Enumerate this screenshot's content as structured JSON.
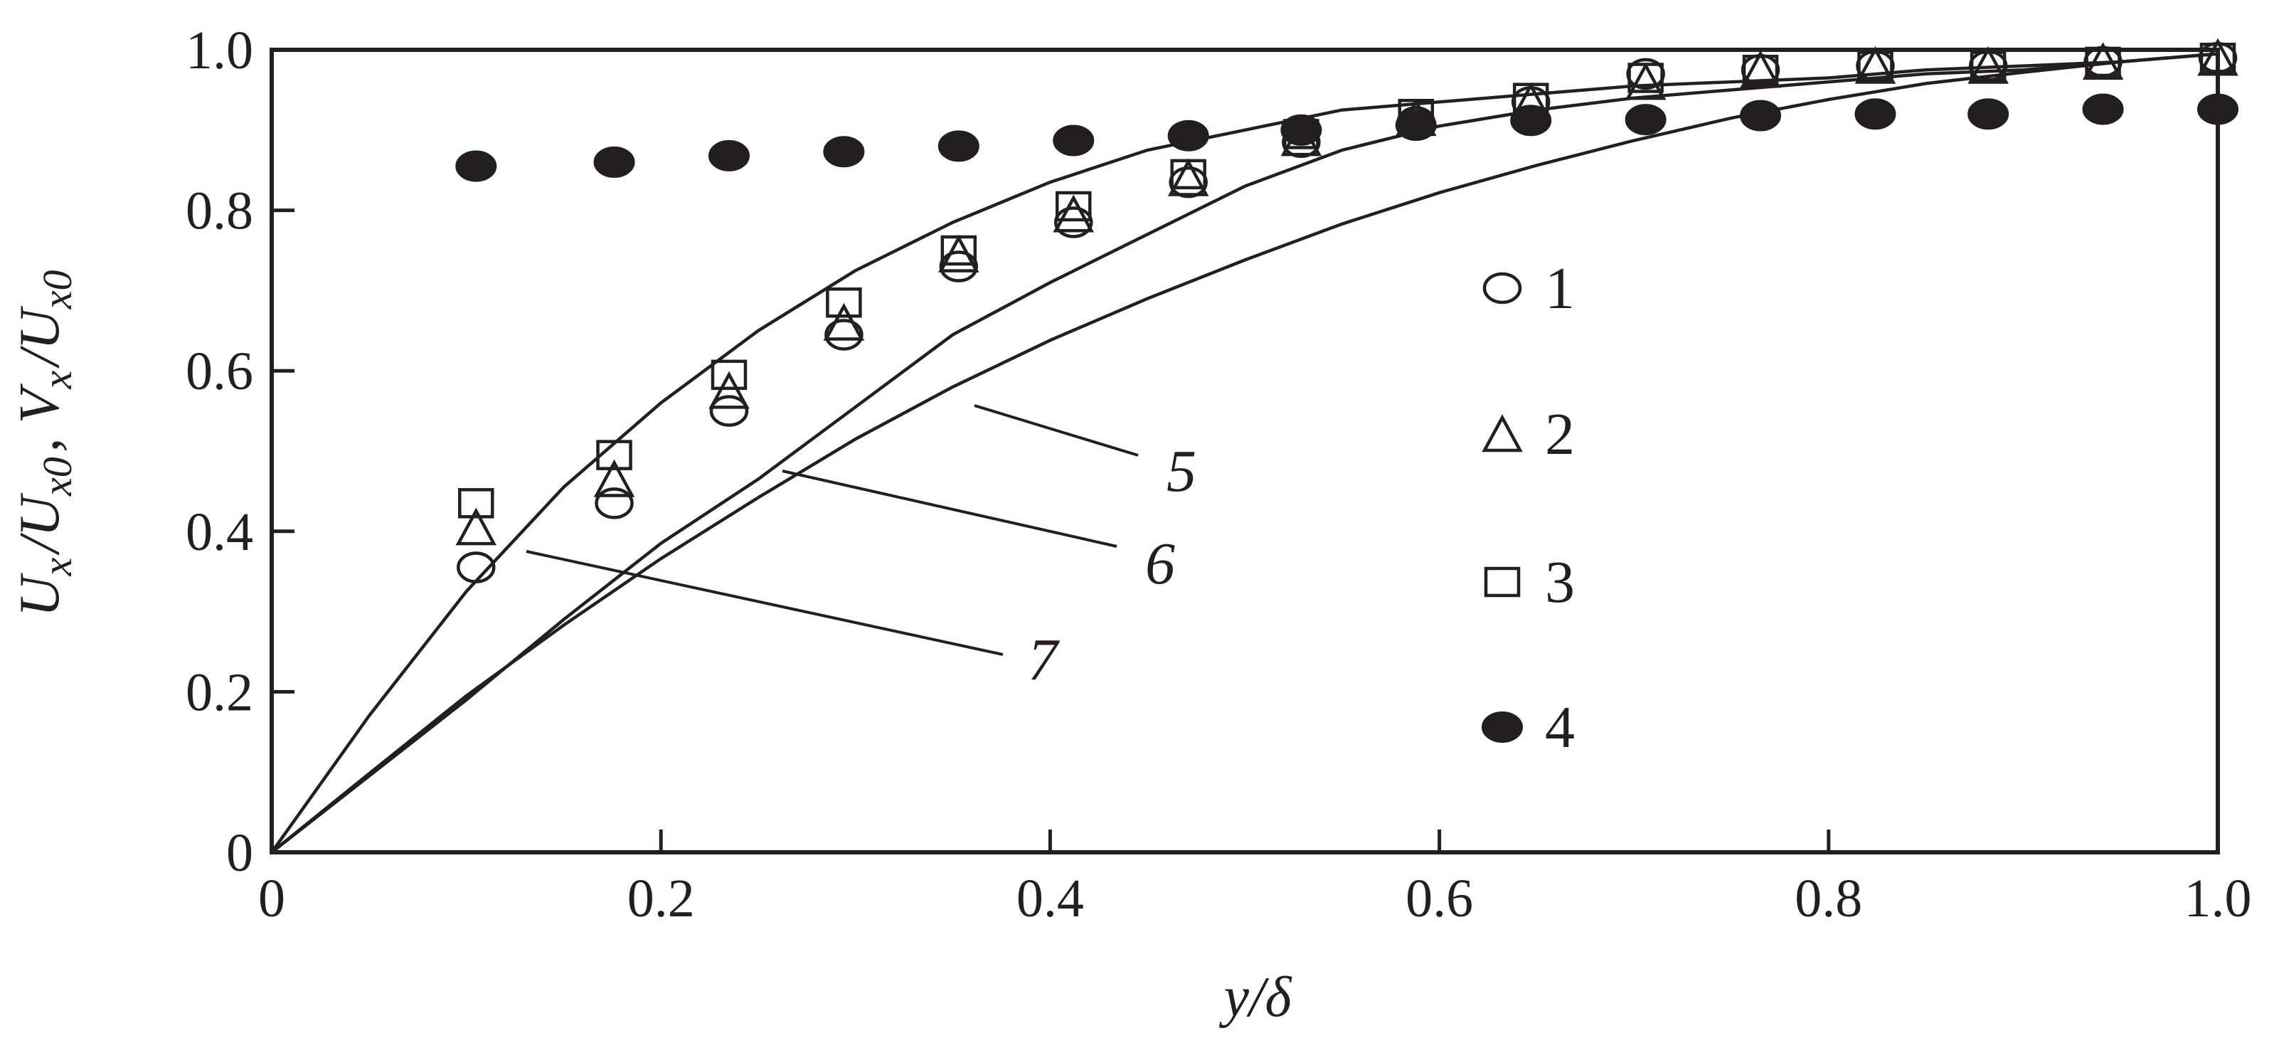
{
  "chart_data": {
    "type": "scatter",
    "title": "",
    "xlabel": "y/δ",
    "ylabel": "U_x/U_x0, V_x/U_x0",
    "ylabel_parts": [
      {
        "text": "U",
        "sub": "x"
      },
      {
        "text": "/"
      },
      {
        "text": "U",
        "sub": "x0"
      },
      {
        "text": ", "
      },
      {
        "text": "V",
        "sub": "x"
      },
      {
        "text": "/"
      },
      {
        "text": "U",
        "sub": "x0"
      }
    ],
    "xlim": [
      0,
      1.0
    ],
    "ylim": [
      0,
      1.0
    ],
    "x_ticks": [
      {
        "value": 0,
        "label": "0"
      },
      {
        "value": 0.2,
        "label": "0.2"
      },
      {
        "value": 0.4,
        "label": "0.4"
      },
      {
        "value": 0.6,
        "label": "0.6"
      },
      {
        "value": 0.8,
        "label": "0.8"
      },
      {
        "value": 1.0,
        "label": "1.0"
      }
    ],
    "y_ticks": [
      {
        "value": 0,
        "label": "0"
      },
      {
        "value": 0.2,
        "label": "0.2"
      },
      {
        "value": 0.4,
        "label": "0.4"
      },
      {
        "value": 0.6,
        "label": "0.6"
      },
      {
        "value": 0.8,
        "label": "0.8"
      },
      {
        "value": 1.0,
        "label": "1.0"
      }
    ],
    "grid": false,
    "legend_position": "right",
    "series": [
      {
        "name": "1",
        "marker": "circle-open",
        "x": [
          0.105,
          0.176,
          0.235,
          0.294,
          0.353,
          0.412,
          0.471,
          0.529,
          0.588,
          0.647,
          0.706,
          0.765,
          0.824,
          0.882,
          0.941,
          1.0
        ],
        "y": [
          0.355,
          0.435,
          0.55,
          0.645,
          0.73,
          0.785,
          0.835,
          0.885,
          0.91,
          0.935,
          0.97,
          0.975,
          0.98,
          0.98,
          0.985,
          0.99
        ]
      },
      {
        "name": "2",
        "marker": "triangle-open",
        "x": [
          0.105,
          0.176,
          0.235,
          0.294,
          0.353,
          0.412,
          0.471,
          0.529,
          0.588,
          0.647,
          0.706,
          0.765,
          0.824,
          0.882,
          0.941,
          1.0
        ],
        "y": [
          0.405,
          0.465,
          0.575,
          0.66,
          0.745,
          0.795,
          0.84,
          0.89,
          0.915,
          0.935,
          0.96,
          0.975,
          0.98,
          0.98,
          0.985,
          0.99
        ]
      },
      {
        "name": "3",
        "marker": "square-open",
        "x": [
          0.105,
          0.176,
          0.235,
          0.294,
          0.353,
          0.412,
          0.471,
          0.529,
          0.588,
          0.647,
          0.706,
          0.765,
          0.824,
          0.882,
          0.941,
          1.0
        ],
        "y": [
          0.435,
          0.495,
          0.595,
          0.685,
          0.75,
          0.805,
          0.845,
          0.895,
          0.92,
          0.94,
          0.965,
          0.975,
          0.98,
          0.98,
          0.985,
          0.99
        ]
      },
      {
        "name": "4",
        "marker": "circle-filled",
        "x": [
          0.105,
          0.176,
          0.235,
          0.294,
          0.353,
          0.412,
          0.471,
          0.529,
          0.588,
          0.647,
          0.706,
          0.765,
          0.824,
          0.882,
          0.941,
          1.0
        ],
        "y": [
          0.855,
          0.86,
          0.868,
          0.873,
          0.88,
          0.887,
          0.893,
          0.9,
          0.906,
          0.912,
          0.913,
          0.918,
          0.92,
          0.92,
          0.926,
          0.926
        ]
      }
    ],
    "curves": [
      {
        "name": "5",
        "x": [
          0,
          0.05,
          0.1,
          0.15,
          0.2,
          0.25,
          0.3,
          0.35,
          0.4,
          0.45,
          0.5,
          0.55,
          0.6,
          0.65,
          0.7,
          0.75,
          0.8,
          0.85,
          0.9,
          0.95,
          1.0
        ],
        "y": [
          0,
          0.098,
          0.195,
          0.283,
          0.366,
          0.442,
          0.515,
          0.58,
          0.638,
          0.69,
          0.738,
          0.783,
          0.822,
          0.856,
          0.887,
          0.915,
          0.938,
          0.958,
          0.972,
          0.985,
          0.995
        ]
      },
      {
        "name": "6",
        "x": [
          0,
          0.05,
          0.1,
          0.15,
          0.2,
          0.25,
          0.3,
          0.35,
          0.4,
          0.45,
          0.5,
          0.55,
          0.6,
          0.65,
          0.7,
          0.75,
          0.8,
          0.85,
          0.9,
          0.95,
          1.0
        ],
        "y": [
          0,
          0.095,
          0.19,
          0.29,
          0.385,
          0.465,
          0.555,
          0.645,
          0.71,
          0.77,
          0.83,
          0.875,
          0.905,
          0.925,
          0.94,
          0.95,
          0.96,
          0.97,
          0.975,
          0.985,
          0.995
        ]
      },
      {
        "name": "7",
        "x": [
          0,
          0.05,
          0.1,
          0.15,
          0.2,
          0.25,
          0.3,
          0.35,
          0.4,
          0.45,
          0.5,
          0.55,
          0.6,
          0.65,
          0.7,
          0.75,
          0.8,
          0.85,
          0.9,
          0.95,
          1.0
        ],
        "y": [
          0,
          0.17,
          0.325,
          0.455,
          0.56,
          0.65,
          0.725,
          0.785,
          0.835,
          0.875,
          0.9,
          0.925,
          0.935,
          0.945,
          0.955,
          0.96,
          0.965,
          0.975,
          0.98,
          0.985,
          0.995
        ]
      }
    ]
  }
}
